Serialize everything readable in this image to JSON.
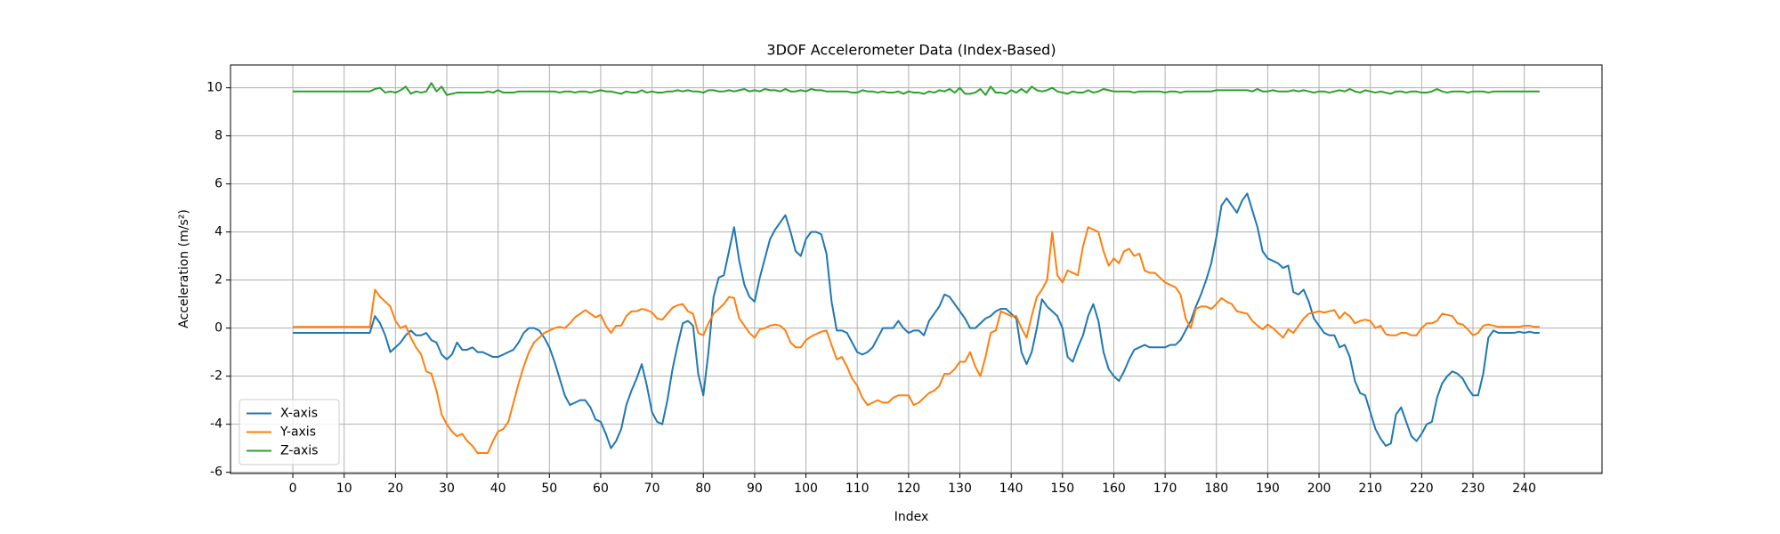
{
  "chart_data": {
    "type": "line",
    "title": "3DOF Accelerometer Data (Index-Based)",
    "x_label": "Index",
    "y_label": "Acceleration (m/s²)",
    "x": [
      0,
      1,
      2,
      3,
      4,
      5,
      6,
      7,
      8,
      9,
      10,
      11,
      12,
      13,
      14,
      15,
      16,
      17,
      18,
      19,
      20,
      21,
      22,
      23,
      24,
      25,
      26,
      27,
      28,
      29,
      30,
      31,
      32,
      33,
      34,
      35,
      36,
      37,
      38,
      39,
      40,
      41,
      42,
      43,
      44,
      45,
      46,
      47,
      48,
      49,
      50,
      51,
      52,
      53,
      54,
      55,
      56,
      57,
      58,
      59,
      60,
      61,
      62,
      63,
      64,
      65,
      66,
      67,
      68,
      69,
      70,
      71,
      72,
      73,
      74,
      75,
      76,
      77,
      78,
      79,
      80,
      81,
      82,
      83,
      84,
      85,
      86,
      87,
      88,
      89,
      90,
      91,
      92,
      93,
      94,
      95,
      96,
      97,
      98,
      99,
      100,
      101,
      102,
      103,
      104,
      105,
      106,
      107,
      108,
      109,
      110,
      111,
      112,
      113,
      114,
      115,
      116,
      117,
      118,
      119,
      120,
      121,
      122,
      123,
      124,
      125,
      126,
      127,
      128,
      129,
      130,
      131,
      132,
      133,
      134,
      135,
      136,
      137,
      138,
      139,
      140,
      141,
      142,
      143,
      144,
      145,
      146,
      147,
      148,
      149,
      150,
      151,
      152,
      153,
      154,
      155,
      156,
      157,
      158,
      159,
      160,
      161,
      162,
      163,
      164,
      165,
      166,
      167,
      168,
      169,
      170,
      171,
      172,
      173,
      174,
      175,
      176,
      177,
      178,
      179,
      180,
      181,
      182,
      183,
      184,
      185,
      186,
      187,
      188,
      189,
      190,
      191,
      192,
      193,
      194,
      195,
      196,
      197,
      198,
      199,
      200,
      201,
      202,
      203,
      204,
      205,
      206,
      207,
      208,
      209,
      210,
      211,
      212,
      213,
      214,
      215,
      216,
      217,
      218,
      219,
      220,
      221,
      222,
      223,
      224,
      225,
      226,
      227,
      228,
      229,
      230,
      231,
      232,
      233,
      234,
      235,
      236,
      237,
      238,
      239,
      240,
      241,
      242,
      243
    ],
    "series": [
      {
        "name": "X-axis",
        "color": "#1f77b4",
        "values": [
          -0.2,
          -0.2,
          -0.2,
          -0.2,
          -0.2,
          -0.2,
          -0.2,
          -0.2,
          -0.2,
          -0.2,
          -0.2,
          -0.2,
          -0.2,
          -0.2,
          -0.2,
          -0.2,
          0.5,
          0.2,
          -0.3,
          -1.0,
          -0.8,
          -0.6,
          -0.3,
          -0.1,
          -0.3,
          -0.3,
          -0.2,
          -0.5,
          -0.6,
          -1.1,
          -1.3,
          -1.1,
          -0.6,
          -0.9,
          -0.9,
          -0.8,
          -1.0,
          -1.0,
          -1.1,
          -1.2,
          -1.2,
          -1.1,
          -1.0,
          -0.9,
          -0.6,
          -0.2,
          0.0,
          0.0,
          -0.1,
          -0.4,
          -0.8,
          -1.4,
          -2.1,
          -2.8,
          -3.2,
          -3.1,
          -3.0,
          -3.0,
          -3.3,
          -3.8,
          -3.9,
          -4.4,
          -5.0,
          -4.7,
          -4.2,
          -3.2,
          -2.6,
          -2.1,
          -1.5,
          -2.4,
          -3.5,
          -3.9,
          -4.0,
          -3.0,
          -1.7,
          -0.7,
          0.2,
          0.3,
          0.1,
          -1.9,
          -2.8,
          -1.0,
          1.3,
          2.1,
          2.2,
          3.2,
          4.2,
          2.8,
          1.8,
          1.3,
          1.1,
          2.1,
          2.9,
          3.7,
          4.1,
          4.4,
          4.7,
          4.0,
          3.2,
          3.0,
          3.7,
          4.0,
          4.0,
          3.9,
          3.1,
          1.1,
          -0.1,
          -0.1,
          -0.2,
          -0.6,
          -1.0,
          -1.1,
          -1.0,
          -0.8,
          -0.4,
          0.0,
          0.0,
          0.0,
          0.3,
          0.0,
          -0.2,
          -0.1,
          -0.1,
          -0.3,
          0.3,
          0.6,
          0.9,
          1.4,
          1.3,
          1.0,
          0.7,
          0.4,
          0.0,
          0.0,
          0.2,
          0.4,
          0.5,
          0.7,
          0.8,
          0.8,
          0.6,
          0.4,
          -1.0,
          -1.5,
          -1.0,
          0.0,
          1.2,
          0.9,
          0.7,
          0.5,
          0.0,
          -1.2,
          -1.4,
          -0.8,
          -0.3,
          0.5,
          1.0,
          0.3,
          -1.0,
          -1.7,
          -2.0,
          -2.2,
          -1.8,
          -1.3,
          -0.9,
          -0.8,
          -0.7,
          -0.8,
          -0.8,
          -0.8,
          -0.8,
          -0.7,
          -0.7,
          -0.5,
          -0.1,
          0.3,
          0.9,
          1.4,
          2.0,
          2.7,
          3.8,
          5.1,
          5.4,
          5.1,
          4.8,
          5.3,
          5.6,
          4.9,
          4.2,
          3.2,
          2.9,
          2.8,
          2.7,
          2.5,
          2.6,
          1.5,
          1.4,
          1.6,
          1.1,
          0.4,
          0.1,
          -0.2,
          -0.3,
          -0.3,
          -0.8,
          -0.7,
          -1.2,
          -2.2,
          -2.7,
          -2.8,
          -3.5,
          -4.2,
          -4.6,
          -4.9,
          -4.8,
          -3.6,
          -3.3,
          -3.9,
          -4.5,
          -4.7,
          -4.4,
          -4.0,
          -3.9,
          -2.9,
          -2.3,
          -2.0,
          -1.8,
          -1.9,
          -2.1,
          -2.5,
          -2.8,
          -2.8,
          -1.9,
          -0.4,
          -0.1,
          -0.2,
          -0.2,
          -0.2,
          -0.2,
          -0.15,
          -0.2,
          -0.15,
          -0.2,
          -0.2
        ]
      },
      {
        "name": "Y-axis",
        "color": "#ff7f0e",
        "values": [
          0.05,
          0.05,
          0.05,
          0.05,
          0.05,
          0.05,
          0.05,
          0.05,
          0.05,
          0.05,
          0.05,
          0.05,
          0.05,
          0.05,
          0.05,
          0.05,
          1.6,
          1.3,
          1.1,
          0.9,
          0.3,
          0.0,
          0.1,
          -0.4,
          -0.8,
          -1.1,
          -1.8,
          -1.9,
          -2.6,
          -3.6,
          -4.0,
          -4.3,
          -4.5,
          -4.4,
          -4.7,
          -4.9,
          -5.2,
          -5.2,
          -5.2,
          -4.7,
          -4.3,
          -4.2,
          -3.9,
          -3.1,
          -2.3,
          -1.6,
          -1.0,
          -0.6,
          -0.4,
          -0.2,
          -0.1,
          0.0,
          0.05,
          0.0,
          0.2,
          0.45,
          0.6,
          0.75,
          0.6,
          0.45,
          0.55,
          0.1,
          -0.2,
          0.1,
          0.1,
          0.5,
          0.7,
          0.7,
          0.8,
          0.75,
          0.65,
          0.4,
          0.35,
          0.6,
          0.85,
          0.95,
          1.0,
          0.7,
          0.6,
          -0.2,
          -0.3,
          0.2,
          0.6,
          0.8,
          1.0,
          1.3,
          1.25,
          0.4,
          0.1,
          -0.2,
          -0.4,
          -0.05,
          0.0,
          0.1,
          0.15,
          0.1,
          -0.1,
          -0.6,
          -0.8,
          -0.8,
          -0.5,
          -0.35,
          -0.25,
          -0.15,
          -0.1,
          -0.7,
          -1.3,
          -1.2,
          -1.6,
          -2.1,
          -2.4,
          -2.9,
          -3.2,
          -3.1,
          -3.0,
          -3.1,
          -3.1,
          -2.9,
          -2.8,
          -2.8,
          -2.8,
          -3.2,
          -3.1,
          -2.9,
          -2.7,
          -2.6,
          -2.4,
          -1.9,
          -1.9,
          -1.7,
          -1.4,
          -1.4,
          -1.0,
          -1.6,
          -2.0,
          -1.2,
          -0.2,
          -0.1,
          0.7,
          0.6,
          0.5,
          0.5,
          0.0,
          -0.4,
          0.5,
          1.3,
          1.6,
          2.0,
          4.0,
          2.2,
          1.9,
          2.4,
          2.3,
          2.2,
          3.4,
          4.2,
          4.1,
          4.0,
          3.2,
          2.6,
          2.9,
          2.7,
          3.2,
          3.3,
          3.0,
          3.1,
          2.4,
          2.3,
          2.3,
          2.1,
          1.9,
          1.8,
          1.7,
          1.4,
          0.4,
          0.0,
          0.8,
          0.9,
          0.9,
          0.8,
          1.0,
          1.25,
          1.1,
          1.0,
          0.7,
          0.65,
          0.6,
          0.3,
          0.1,
          -0.05,
          0.15,
          0.0,
          -0.2,
          -0.4,
          -0.05,
          -0.2,
          0.1,
          0.4,
          0.6,
          0.65,
          0.7,
          0.65,
          0.7,
          0.75,
          0.4,
          0.65,
          0.5,
          0.2,
          0.3,
          0.35,
          0.3,
          0.0,
          0.1,
          -0.25,
          -0.3,
          -0.3,
          -0.2,
          -0.2,
          -0.3,
          -0.3,
          0.0,
          0.2,
          0.2,
          0.3,
          0.6,
          0.55,
          0.5,
          0.2,
          0.15,
          -0.05,
          -0.3,
          -0.2,
          0.1,
          0.15,
          0.1,
          0.05,
          0.05,
          0.05,
          0.05,
          0.05,
          0.1,
          0.1,
          0.05,
          0.05
        ]
      },
      {
        "name": "Z-axis",
        "color": "#2ca02c",
        "values": [
          9.85,
          9.85,
          9.85,
          9.85,
          9.85,
          9.85,
          9.85,
          9.85,
          9.85,
          9.85,
          9.85,
          9.85,
          9.85,
          9.85,
          9.85,
          9.85,
          9.95,
          10.0,
          9.8,
          9.85,
          9.8,
          9.9,
          10.05,
          9.75,
          9.85,
          9.8,
          9.85,
          10.2,
          9.85,
          10.05,
          9.7,
          9.75,
          9.8,
          9.8,
          9.8,
          9.8,
          9.8,
          9.8,
          9.85,
          9.8,
          9.9,
          9.8,
          9.8,
          9.8,
          9.85,
          9.85,
          9.85,
          9.85,
          9.85,
          9.85,
          9.85,
          9.85,
          9.8,
          9.85,
          9.85,
          9.8,
          9.85,
          9.85,
          9.8,
          9.85,
          9.9,
          9.85,
          9.85,
          9.8,
          9.75,
          9.85,
          9.8,
          9.8,
          9.9,
          9.8,
          9.85,
          9.8,
          9.8,
          9.85,
          9.85,
          9.9,
          9.85,
          9.9,
          9.85,
          9.85,
          9.8,
          9.9,
          9.9,
          9.85,
          9.85,
          9.9,
          9.85,
          9.9,
          9.95,
          9.85,
          9.9,
          9.85,
          9.95,
          9.9,
          9.9,
          9.85,
          9.95,
          9.85,
          9.85,
          9.9,
          9.85,
          9.95,
          9.9,
          9.9,
          9.85,
          9.85,
          9.85,
          9.85,
          9.85,
          9.8,
          9.8,
          9.9,
          9.85,
          9.85,
          9.8,
          9.85,
          9.8,
          9.8,
          9.85,
          9.75,
          9.85,
          9.8,
          9.8,
          9.75,
          9.85,
          9.8,
          9.9,
          9.85,
          9.95,
          9.8,
          10.0,
          9.75,
          9.75,
          9.8,
          9.95,
          9.7,
          10.05,
          9.8,
          9.8,
          9.75,
          9.9,
          9.8,
          9.95,
          9.8,
          10.05,
          9.9,
          9.85,
          9.9,
          10.0,
          9.85,
          9.8,
          9.75,
          9.85,
          9.8,
          9.8,
          9.9,
          9.8,
          9.85,
          9.95,
          9.9,
          9.85,
          9.85,
          9.85,
          9.85,
          9.8,
          9.85,
          9.85,
          9.85,
          9.85,
          9.85,
          9.8,
          9.85,
          9.85,
          9.8,
          9.85,
          9.85,
          9.85,
          9.85,
          9.85,
          9.85,
          9.9,
          9.9,
          9.9,
          9.9,
          9.9,
          9.9,
          9.9,
          9.85,
          9.95,
          9.85,
          9.85,
          9.9,
          9.85,
          9.85,
          9.85,
          9.9,
          9.85,
          9.9,
          9.85,
          9.8,
          9.85,
          9.85,
          9.8,
          9.85,
          9.9,
          9.85,
          9.95,
          9.85,
          9.8,
          9.9,
          9.85,
          9.8,
          9.85,
          9.8,
          9.75,
          9.85,
          9.85,
          9.8,
          9.85,
          9.85,
          9.8,
          9.8,
          9.85,
          9.95,
          9.85,
          9.8,
          9.85,
          9.85,
          9.85,
          9.8,
          9.85,
          9.85,
          9.85,
          9.8,
          9.85,
          9.85,
          9.85,
          9.85,
          9.85,
          9.85,
          9.85,
          9.85,
          9.85,
          9.85
        ]
      }
    ],
    "xlim": [
      -12.15,
      255.15
    ],
    "xticks": [
      0,
      10,
      20,
      30,
      40,
      50,
      60,
      70,
      80,
      90,
      100,
      110,
      120,
      130,
      140,
      150,
      160,
      170,
      180,
      190,
      200,
      210,
      220,
      230,
      240
    ],
    "ylim": [
      -6.05,
      10.95
    ],
    "yticks": [
      -6,
      -4,
      -2,
      0,
      2,
      4,
      6,
      8,
      10
    ],
    "grid": true,
    "legend": "lower left"
  }
}
